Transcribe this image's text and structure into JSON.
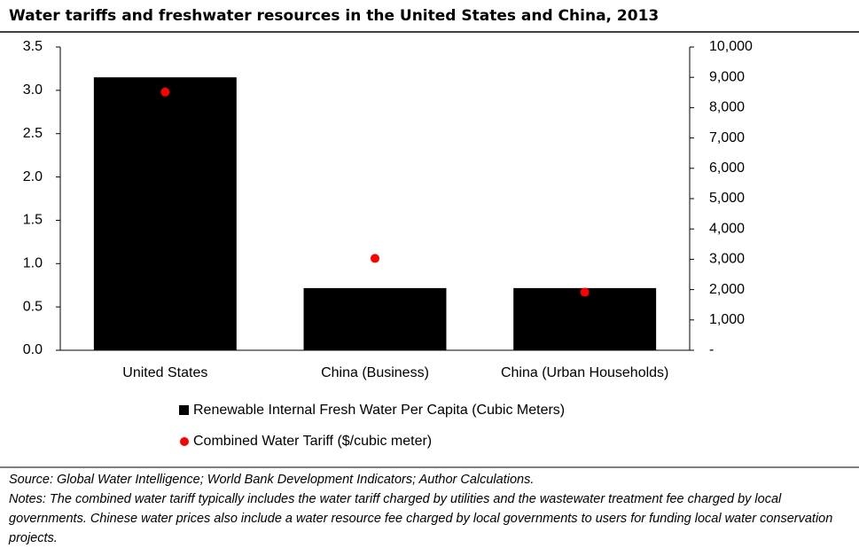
{
  "chart_data": {
    "type": "bar",
    "title": "Water tariffs and freshwater resources in the United States and China, 2013",
    "categories": [
      "United States",
      "China (Business)",
      "China (Urban Households)"
    ],
    "series": [
      {
        "name": "Renewable Internal Fresh Water Per Capita (Cubic Meters)",
        "type": "bar",
        "axis": "y2",
        "color": "#000000",
        "values": [
          9000,
          2050,
          2050
        ]
      },
      {
        "name": "Combined Water Tariff ($/cubic meter)",
        "type": "scatter",
        "axis": "y",
        "color": "#ff0000",
        "values": [
          2.98,
          1.06,
          0.67
        ]
      }
    ],
    "ylim": [
      0,
      3.5
    ],
    "yticks": [
      {
        "value": 0,
        "label": "0.0"
      },
      0.5,
      {
        "value": 1,
        "label": "1.0"
      },
      1.5,
      {
        "value": 2,
        "label": "2.0"
      },
      2.5,
      {
        "value": 3,
        "label": "3.0"
      },
      3.5
    ],
    "y2lim": [
      0,
      10000
    ],
    "y2ticks": [
      {
        "value": 0,
        "label": "-"
      },
      {
        "value": 1000,
        "label": "1,000"
      },
      {
        "value": 2000,
        "label": "2,000"
      },
      {
        "value": 3000,
        "label": "3,000"
      },
      {
        "value": 4000,
        "label": "4,000"
      },
      {
        "value": 5000,
        "label": "5,000"
      },
      {
        "value": 6000,
        "label": "6,000"
      },
      {
        "value": 7000,
        "label": "7,000"
      },
      {
        "value": 8000,
        "label": "8,000"
      },
      {
        "value": 9000,
        "label": "9,000"
      },
      {
        "value": 10000,
        "label": "10,000"
      }
    ],
    "source": "Source: Global Water Intelligence; World Bank Development Indicators; Author Calculations.",
    "notes": "Notes: The combined water tariff typically includes the water tariff charged by utilities and the wastewater treatment fee charged by local governments. Chinese water prices also include a water resource fee charged by local governments to users for funding local water conservation projects."
  }
}
